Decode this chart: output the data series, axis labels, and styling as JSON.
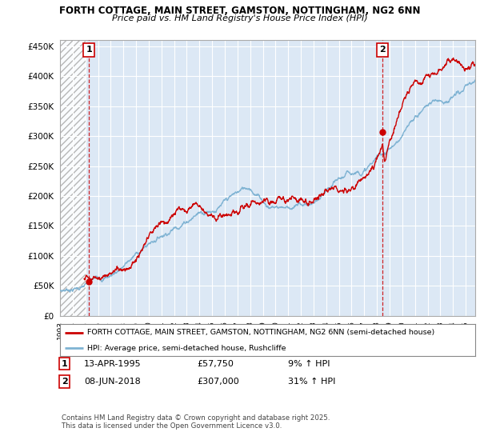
{
  "title": "FORTH COTTAGE, MAIN STREET, GAMSTON, NOTTINGHAM, NG2 6NN",
  "subtitle": "Price paid vs. HM Land Registry's House Price Index (HPI)",
  "legend_line1": "FORTH COTTAGE, MAIN STREET, GAMSTON, NOTTINGHAM, NG2 6NN (semi-detached house)",
  "legend_line2": "HPI: Average price, semi-detached house, Rushcliffe",
  "annotation1_date": "13-APR-1995",
  "annotation1_price": "£57,750",
  "annotation1_hpi": "9% ↑ HPI",
  "annotation2_date": "08-JUN-2018",
  "annotation2_price": "£307,000",
  "annotation2_hpi": "31% ↑ HPI",
  "footer": "Contains HM Land Registry data © Crown copyright and database right 2025.\nThis data is licensed under the Open Government Licence v3.0.",
  "property_color": "#cc0000",
  "hpi_color": "#7fb3d3",
  "background_color": "#dce8f5",
  "ylim": [
    0,
    460000
  ],
  "yticks": [
    0,
    50000,
    100000,
    150000,
    200000,
    250000,
    300000,
    350000,
    400000,
    450000
  ],
  "sale1_x": 1995.28,
  "sale1_y": 57750,
  "sale2_x": 2018.44,
  "sale2_y": 307000,
  "xmin": 1993.0,
  "xmax": 2025.75
}
